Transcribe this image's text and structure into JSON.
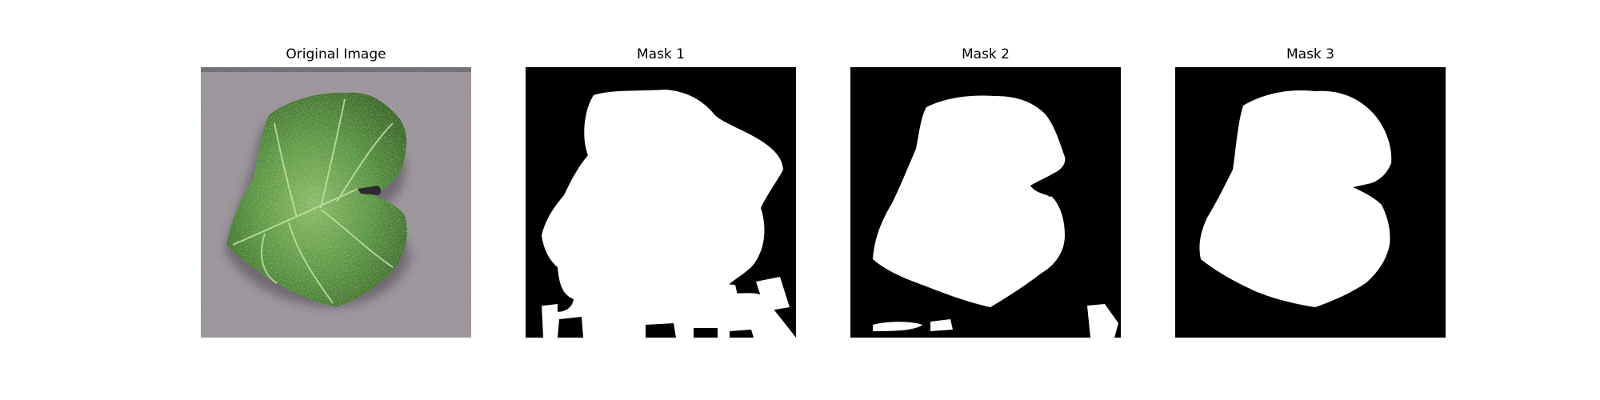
{
  "figure": {
    "panels": [
      {
        "title": "Original Image",
        "kind": "photo",
        "subject": "leaf-photo"
      },
      {
        "title": "Mask 1",
        "kind": "mask",
        "subject": "binary-mask"
      },
      {
        "title": "Mask 2",
        "kind": "mask",
        "subject": "binary-mask"
      },
      {
        "title": "Mask 3",
        "kind": "mask",
        "subject": "binary-mask"
      }
    ],
    "colors": {
      "background": "#ffffff",
      "mask_background": "#000000",
      "mask_foreground": "#ffffff",
      "leaf_dark": "#3f6e2a",
      "leaf_light": "#8fbf6a",
      "surface_gray": "#9a9098"
    }
  }
}
